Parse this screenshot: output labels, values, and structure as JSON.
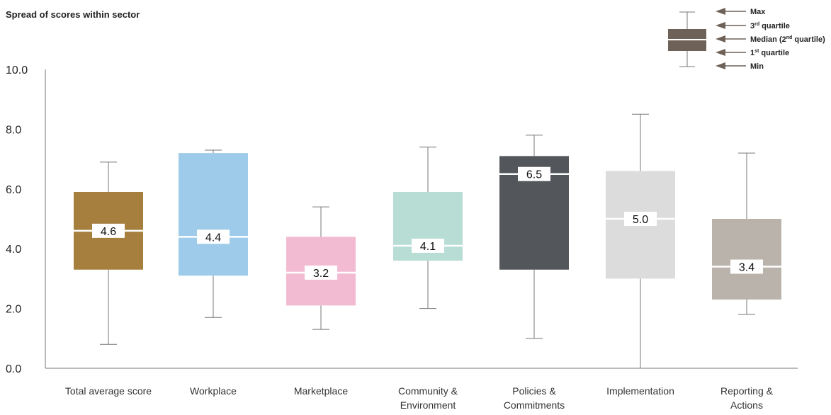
{
  "chart_data": {
    "type": "box",
    "title": "Spread of scores within sector",
    "ylim": [
      0,
      10
    ],
    "yticks": [
      "0.0",
      "2.0",
      "4.0",
      "6.0",
      "8.0",
      "10.0"
    ],
    "grid": false,
    "categories": [
      {
        "label": [
          "Total average score"
        ],
        "min": 0.8,
        "q1": 3.3,
        "median": 4.6,
        "median_label": "4.6",
        "q3": 5.9,
        "max": 6.9,
        "color": "#a67f3f"
      },
      {
        "label": [
          "Workplace"
        ],
        "min": 1.7,
        "q1": 3.1,
        "median": 4.4,
        "median_label": "4.4",
        "q3": 7.2,
        "max": 7.3,
        "color": "#9ecbe9"
      },
      {
        "label": [
          "Marketplace"
        ],
        "min": 1.3,
        "q1": 2.1,
        "median": 3.2,
        "median_label": "3.2",
        "q3": 4.4,
        "max": 5.4,
        "color": "#f3bbd1"
      },
      {
        "label": [
          "Community &",
          "Environment"
        ],
        "min": 2.0,
        "q1": 3.6,
        "median": 4.1,
        "median_label": "4.1",
        "q3": 5.9,
        "max": 7.4,
        "color": "#b7ddd4"
      },
      {
        "label": [
          "Policies &",
          "Commitments"
        ],
        "min": 1.0,
        "q1": 3.3,
        "median": 6.5,
        "median_label": "6.5",
        "q3": 7.1,
        "max": 7.8,
        "color": "#53565b"
      },
      {
        "label": [
          "Implementation"
        ],
        "min": 0.0,
        "q1": 3.0,
        "median": 5.0,
        "median_label": "5.0",
        "q3": 6.6,
        "max": 8.5,
        "color": "#dcdcdc"
      },
      {
        "label": [
          "Reporting &",
          "Actions"
        ],
        "min": 1.8,
        "q1": 2.3,
        "median": 3.4,
        "median_label": "3.4",
        "q3": 5.0,
        "max": 7.2,
        "color": "#bab3ac"
      }
    ],
    "legend": {
      "placement": "top-right",
      "color": "#6e6157",
      "items": [
        {
          "text": "Max"
        },
        {
          "text": "3",
          "sup": "rd",
          "rest": " quartile"
        },
        {
          "text": "Median (2",
          "sup": "nd",
          "rest": " quartile)"
        },
        {
          "text": "1",
          "sup": "st",
          "rest": " quartile"
        },
        {
          "text": "Min"
        }
      ]
    }
  }
}
